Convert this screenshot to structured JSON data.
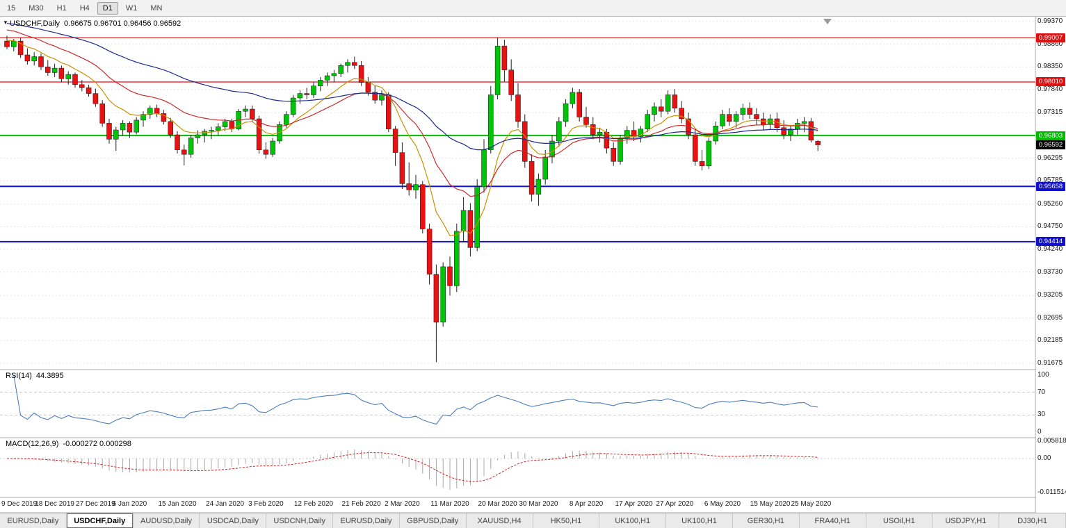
{
  "toolbar": {
    "timeframes": [
      "15",
      "M30",
      "H1",
      "H4",
      "D1",
      "W1",
      "MN"
    ],
    "active_timeframe": "D1"
  },
  "chart": {
    "symbol": "USDCHF,Daily",
    "ohlc_text": "0.96675 0.96701 0.96456 0.96592"
  },
  "rsi": {
    "label": "RSI(14)",
    "value": "44.3895"
  },
  "macd": {
    "label": "MACD(12,26,9)",
    "values": "-0.000272 0.000298"
  },
  "tabs": {
    "active_index": 1,
    "items": [
      "EURUSD,Daily",
      "USDCHF,Daily",
      "AUDUSD,Daily",
      "USDCAD,Daily",
      "USDCNH,Daily",
      "EURUSD,Daily",
      "GBPUSD,Daily",
      "XAUUSD,H4",
      "HK50,H1",
      "UK100,H1",
      "UK100,H1",
      "GER30,H1",
      "FRA40,H1",
      "USOil,H1",
      "USDJPY,H1",
      "DJ30,H1"
    ]
  },
  "chart_data": {
    "type": "candlestick",
    "symbol": "USDCHF",
    "timeframe": "Daily",
    "last_ohlc": {
      "open": "0.96675",
      "high": "0.96701",
      "low": "0.96456",
      "close": "0.96592"
    },
    "colors": {
      "up": "#00c408",
      "down": "#e81212",
      "wick": "#222222"
    },
    "y_axis": {
      "top_value": 0.9937,
      "bottom_value": 0.91675,
      "ticks": [
        "0.99370",
        "0.98860",
        "0.98350",
        "0.97840",
        "0.97315",
        "0.96805",
        "0.96295",
        "0.95785",
        "0.95260",
        "0.94750",
        "0.94240",
        "0.93730",
        "0.93205",
        "0.92695",
        "0.92185",
        "0.91675"
      ]
    },
    "levels": [
      {
        "value": 0.99007,
        "label": "0.99007",
        "color": "#dd1111",
        "line_width": 1.2
      },
      {
        "value": 0.9801,
        "label": "0.98010",
        "color": "#dd1111",
        "line_width": 1.2
      },
      {
        "value": 0.96803,
        "label": "0.96803",
        "color": "#00bb00",
        "line_width": 2
      },
      {
        "value": 0.95658,
        "label": "0.95658",
        "color": "#1111cc",
        "line_width": 2
      },
      {
        "value": 0.94414,
        "label": "0.94414",
        "color": "#1111cc",
        "line_width": 2
      }
    ],
    "bid": {
      "value": 0.96592,
      "label": "0.96592",
      "color": "#000000"
    },
    "date_ticks": [
      {
        "label": "9 Dec 2019",
        "index": 0
      },
      {
        "label": "18 Dec 2019",
        "index": 7
      },
      {
        "label": "27 Dec 2019",
        "index": 13
      },
      {
        "label": "6 Jan 2020",
        "index": 18
      },
      {
        "label": "15 Jan 2020",
        "index": 25
      },
      {
        "label": "24 Jan 2020",
        "index": 32
      },
      {
        "label": "3 Feb 2020",
        "index": 38
      },
      {
        "label": "12 Feb 2020",
        "index": 45
      },
      {
        "label": "21 Feb 2020",
        "index": 52
      },
      {
        "label": "2 Mar 2020",
        "index": 58
      },
      {
        "label": "11 Mar 2020",
        "index": 65
      },
      {
        "label": "20 Mar 2020",
        "index": 72
      },
      {
        "label": "30 Mar 2020",
        "index": 78
      },
      {
        "label": "8 Apr 2020",
        "index": 85
      },
      {
        "label": "17 Apr 2020",
        "index": 92
      },
      {
        "label": "27 Apr 2020",
        "index": 98
      },
      {
        "label": "6 May 2020",
        "index": 105
      },
      {
        "label": "15 May 2020",
        "index": 112
      },
      {
        "label": "25 May 2020",
        "index": 118
      }
    ],
    "indicators": {
      "moving_averages": [
        {
          "period": 9,
          "seed": 0.9898,
          "color": "#c79200"
        },
        {
          "period": 20,
          "seed": 0.9922,
          "color": "#cc2a2a"
        },
        {
          "period": 50,
          "seed": 0.9935,
          "color": "#1c2a8f"
        }
      ],
      "rsi": {
        "period": 14,
        "current": "44.3895",
        "color": "#4a7ebb",
        "axis_ticks": [
          "100",
          "70",
          "30",
          "0"
        ],
        "level_lines": [
          70,
          30
        ]
      },
      "macd": {
        "fast": 12,
        "slow": 26,
        "signal": 9,
        "current_macd": "-0.000272",
        "current_signal": "0.000298",
        "axis_ticks": [
          "0.005818",
          "0.00",
          "-0.011514"
        ],
        "histogram_color": "#a8a8a8",
        "signal_color": "#cc2222"
      }
    },
    "ohlc": [
      [
        0.9893,
        0.9905,
        0.9875,
        0.988
      ],
      [
        0.988,
        0.9898,
        0.987,
        0.9893
      ],
      [
        0.9893,
        0.99,
        0.9855,
        0.9862
      ],
      [
        0.9862,
        0.9877,
        0.984,
        0.9848
      ],
      [
        0.9848,
        0.9868,
        0.9838,
        0.9858
      ],
      [
        0.9858,
        0.9865,
        0.9828,
        0.9835
      ],
      [
        0.9835,
        0.985,
        0.9815,
        0.9822
      ],
      [
        0.9822,
        0.9842,
        0.9812,
        0.9832
      ],
      [
        0.9832,
        0.9838,
        0.98,
        0.9808
      ],
      [
        0.9808,
        0.9825,
        0.9795,
        0.9818
      ],
      [
        0.9818,
        0.9822,
        0.9788,
        0.9795
      ],
      [
        0.9795,
        0.9805,
        0.978,
        0.9788
      ],
      [
        0.9788,
        0.9795,
        0.9768,
        0.9775
      ],
      [
        0.9775,
        0.9786,
        0.9745,
        0.9752
      ],
      [
        0.9752,
        0.976,
        0.97,
        0.9708
      ],
      [
        0.9708,
        0.9718,
        0.9662,
        0.9672
      ],
      [
        0.9672,
        0.97,
        0.9646,
        0.9693
      ],
      [
        0.9693,
        0.9715,
        0.968,
        0.9708
      ],
      [
        0.9708,
        0.9712,
        0.9675,
        0.9688
      ],
      [
        0.9688,
        0.9722,
        0.9683,
        0.9715
      ],
      [
        0.9715,
        0.9735,
        0.97,
        0.9728
      ],
      [
        0.9728,
        0.9748,
        0.9718,
        0.9742
      ],
      [
        0.9742,
        0.975,
        0.9722,
        0.973
      ],
      [
        0.973,
        0.9738,
        0.9705,
        0.9712
      ],
      [
        0.9712,
        0.972,
        0.9675,
        0.9682
      ],
      [
        0.9682,
        0.969,
        0.964,
        0.9648
      ],
      [
        0.9648,
        0.966,
        0.9613,
        0.9638
      ],
      [
        0.9638,
        0.9682,
        0.963,
        0.9675
      ],
      [
        0.9675,
        0.9692,
        0.9662,
        0.9682
      ],
      [
        0.9682,
        0.9695,
        0.9665,
        0.969
      ],
      [
        0.969,
        0.97,
        0.9672,
        0.9692
      ],
      [
        0.9692,
        0.9708,
        0.968,
        0.97
      ],
      [
        0.97,
        0.9718,
        0.969,
        0.9712
      ],
      [
        0.9712,
        0.9718,
        0.9688,
        0.9695
      ],
      [
        0.9695,
        0.974,
        0.9692,
        0.9735
      ],
      [
        0.9735,
        0.9748,
        0.9722,
        0.974
      ],
      [
        0.974,
        0.9748,
        0.971,
        0.9718
      ],
      [
        0.9718,
        0.9725,
        0.964,
        0.9648
      ],
      [
        0.9648,
        0.9665,
        0.9628,
        0.9638
      ],
      [
        0.9638,
        0.9675,
        0.9632,
        0.9668
      ],
      [
        0.9668,
        0.9712,
        0.9662,
        0.9705
      ],
      [
        0.9705,
        0.9735,
        0.9698,
        0.9728
      ],
      [
        0.9728,
        0.9772,
        0.9722,
        0.9765
      ],
      [
        0.9765,
        0.9782,
        0.9752,
        0.9775
      ],
      [
        0.9775,
        0.9788,
        0.9762,
        0.9772
      ],
      [
        0.9772,
        0.98,
        0.9765,
        0.9792
      ],
      [
        0.9792,
        0.9812,
        0.978,
        0.9805
      ],
      [
        0.9805,
        0.9822,
        0.9792,
        0.9815
      ],
      [
        0.9815,
        0.9828,
        0.98,
        0.982
      ],
      [
        0.982,
        0.9842,
        0.9812,
        0.9838
      ],
      [
        0.9838,
        0.9852,
        0.9822,
        0.9845
      ],
      [
        0.9845,
        0.9858,
        0.983,
        0.9838
      ],
      [
        0.9838,
        0.9848,
        0.9792,
        0.98
      ],
      [
        0.98,
        0.9812,
        0.977,
        0.9778
      ],
      [
        0.9778,
        0.9792,
        0.9752,
        0.976
      ],
      [
        0.976,
        0.9782,
        0.9748,
        0.9772
      ],
      [
        0.9772,
        0.9778,
        0.9688,
        0.9695
      ],
      [
        0.9695,
        0.9702,
        0.9612,
        0.9642
      ],
      [
        0.9642,
        0.9665,
        0.956,
        0.9572
      ],
      [
        0.9572,
        0.962,
        0.9545,
        0.9558
      ],
      [
        0.9558,
        0.9592,
        0.9538,
        0.957
      ],
      [
        0.957,
        0.9578,
        0.946,
        0.947
      ],
      [
        0.947,
        0.9482,
        0.9345,
        0.9368
      ],
      [
        0.9368,
        0.939,
        0.917,
        0.926
      ],
      [
        0.926,
        0.9395,
        0.925,
        0.9385
      ],
      [
        0.9385,
        0.9408,
        0.932,
        0.9342
      ],
      [
        0.9342,
        0.9482,
        0.9328,
        0.9465
      ],
      [
        0.9465,
        0.9542,
        0.944,
        0.9512
      ],
      [
        0.9512,
        0.9528,
        0.9408,
        0.9428
      ],
      [
        0.9428,
        0.9582,
        0.942,
        0.9565
      ],
      [
        0.9565,
        0.9672,
        0.9552,
        0.9648
      ],
      [
        0.9648,
        0.9792,
        0.964,
        0.9772
      ],
      [
        0.9772,
        0.9901,
        0.9762,
        0.9882
      ],
      [
        0.9882,
        0.9896,
        0.9802,
        0.9828
      ],
      [
        0.9828,
        0.9852,
        0.9758,
        0.9772
      ],
      [
        0.9772,
        0.9798,
        0.9698,
        0.9712
      ],
      [
        0.9712,
        0.9728,
        0.9608,
        0.9622
      ],
      [
        0.9622,
        0.9638,
        0.9532,
        0.9548
      ],
      [
        0.9548,
        0.9595,
        0.9522,
        0.9582
      ],
      [
        0.9582,
        0.9648,
        0.957,
        0.9632
      ],
      [
        0.9632,
        0.9682,
        0.9618,
        0.9668
      ],
      [
        0.9668,
        0.9722,
        0.9655,
        0.9712
      ],
      [
        0.9712,
        0.9762,
        0.97,
        0.9752
      ],
      [
        0.9752,
        0.9788,
        0.9742,
        0.9778
      ],
      [
        0.9778,
        0.9785,
        0.9712,
        0.9722
      ],
      [
        0.9722,
        0.9745,
        0.9698,
        0.9705
      ],
      [
        0.9705,
        0.9722,
        0.9672,
        0.9682
      ],
      [
        0.9682,
        0.9698,
        0.9665,
        0.9688
      ],
      [
        0.9688,
        0.9695,
        0.964,
        0.9652
      ],
      [
        0.9652,
        0.9665,
        0.9612,
        0.9622
      ],
      [
        0.9622,
        0.9682,
        0.9615,
        0.9675
      ],
      [
        0.9675,
        0.9702,
        0.9662,
        0.9692
      ],
      [
        0.9692,
        0.9712,
        0.9668,
        0.9678
      ],
      [
        0.9678,
        0.9702,
        0.9665,
        0.9695
      ],
      [
        0.9695,
        0.9738,
        0.9688,
        0.9728
      ],
      [
        0.9728,
        0.9755,
        0.9712,
        0.9745
      ],
      [
        0.9745,
        0.9762,
        0.9722,
        0.9735
      ],
      [
        0.9735,
        0.9782,
        0.9728,
        0.9772
      ],
      [
        0.9772,
        0.9785,
        0.9732,
        0.9742
      ],
      [
        0.9742,
        0.9758,
        0.9708,
        0.9718
      ],
      [
        0.9718,
        0.9732,
        0.9672,
        0.9682
      ],
      [
        0.9682,
        0.9695,
        0.9612,
        0.9622
      ],
      [
        0.9622,
        0.9648,
        0.9602,
        0.9612
      ],
      [
        0.9612,
        0.9675,
        0.9605,
        0.9668
      ],
      [
        0.9668,
        0.9712,
        0.966,
        0.9702
      ],
      [
        0.9702,
        0.9738,
        0.9695,
        0.9728
      ],
      [
        0.9728,
        0.9742,
        0.9702,
        0.9712
      ],
      [
        0.9712,
        0.9735,
        0.9698,
        0.9728
      ],
      [
        0.9728,
        0.9752,
        0.9715,
        0.9742
      ],
      [
        0.9742,
        0.9755,
        0.9718,
        0.9728
      ],
      [
        0.9728,
        0.9742,
        0.9705,
        0.9718
      ],
      [
        0.9718,
        0.9732,
        0.9692,
        0.9705
      ],
      [
        0.9705,
        0.9728,
        0.9695,
        0.9718
      ],
      [
        0.9718,
        0.9732,
        0.9688,
        0.9698
      ],
      [
        0.9698,
        0.9715,
        0.9672,
        0.9682
      ],
      [
        0.9682,
        0.9702,
        0.9668,
        0.9695
      ],
      [
        0.9695,
        0.9718,
        0.9682,
        0.9708
      ],
      [
        0.9708,
        0.9722,
        0.9688,
        0.9712
      ],
      [
        0.9712,
        0.972,
        0.9665,
        0.967
      ],
      [
        0.96675,
        0.96701,
        0.96456,
        0.96592
      ]
    ]
  }
}
